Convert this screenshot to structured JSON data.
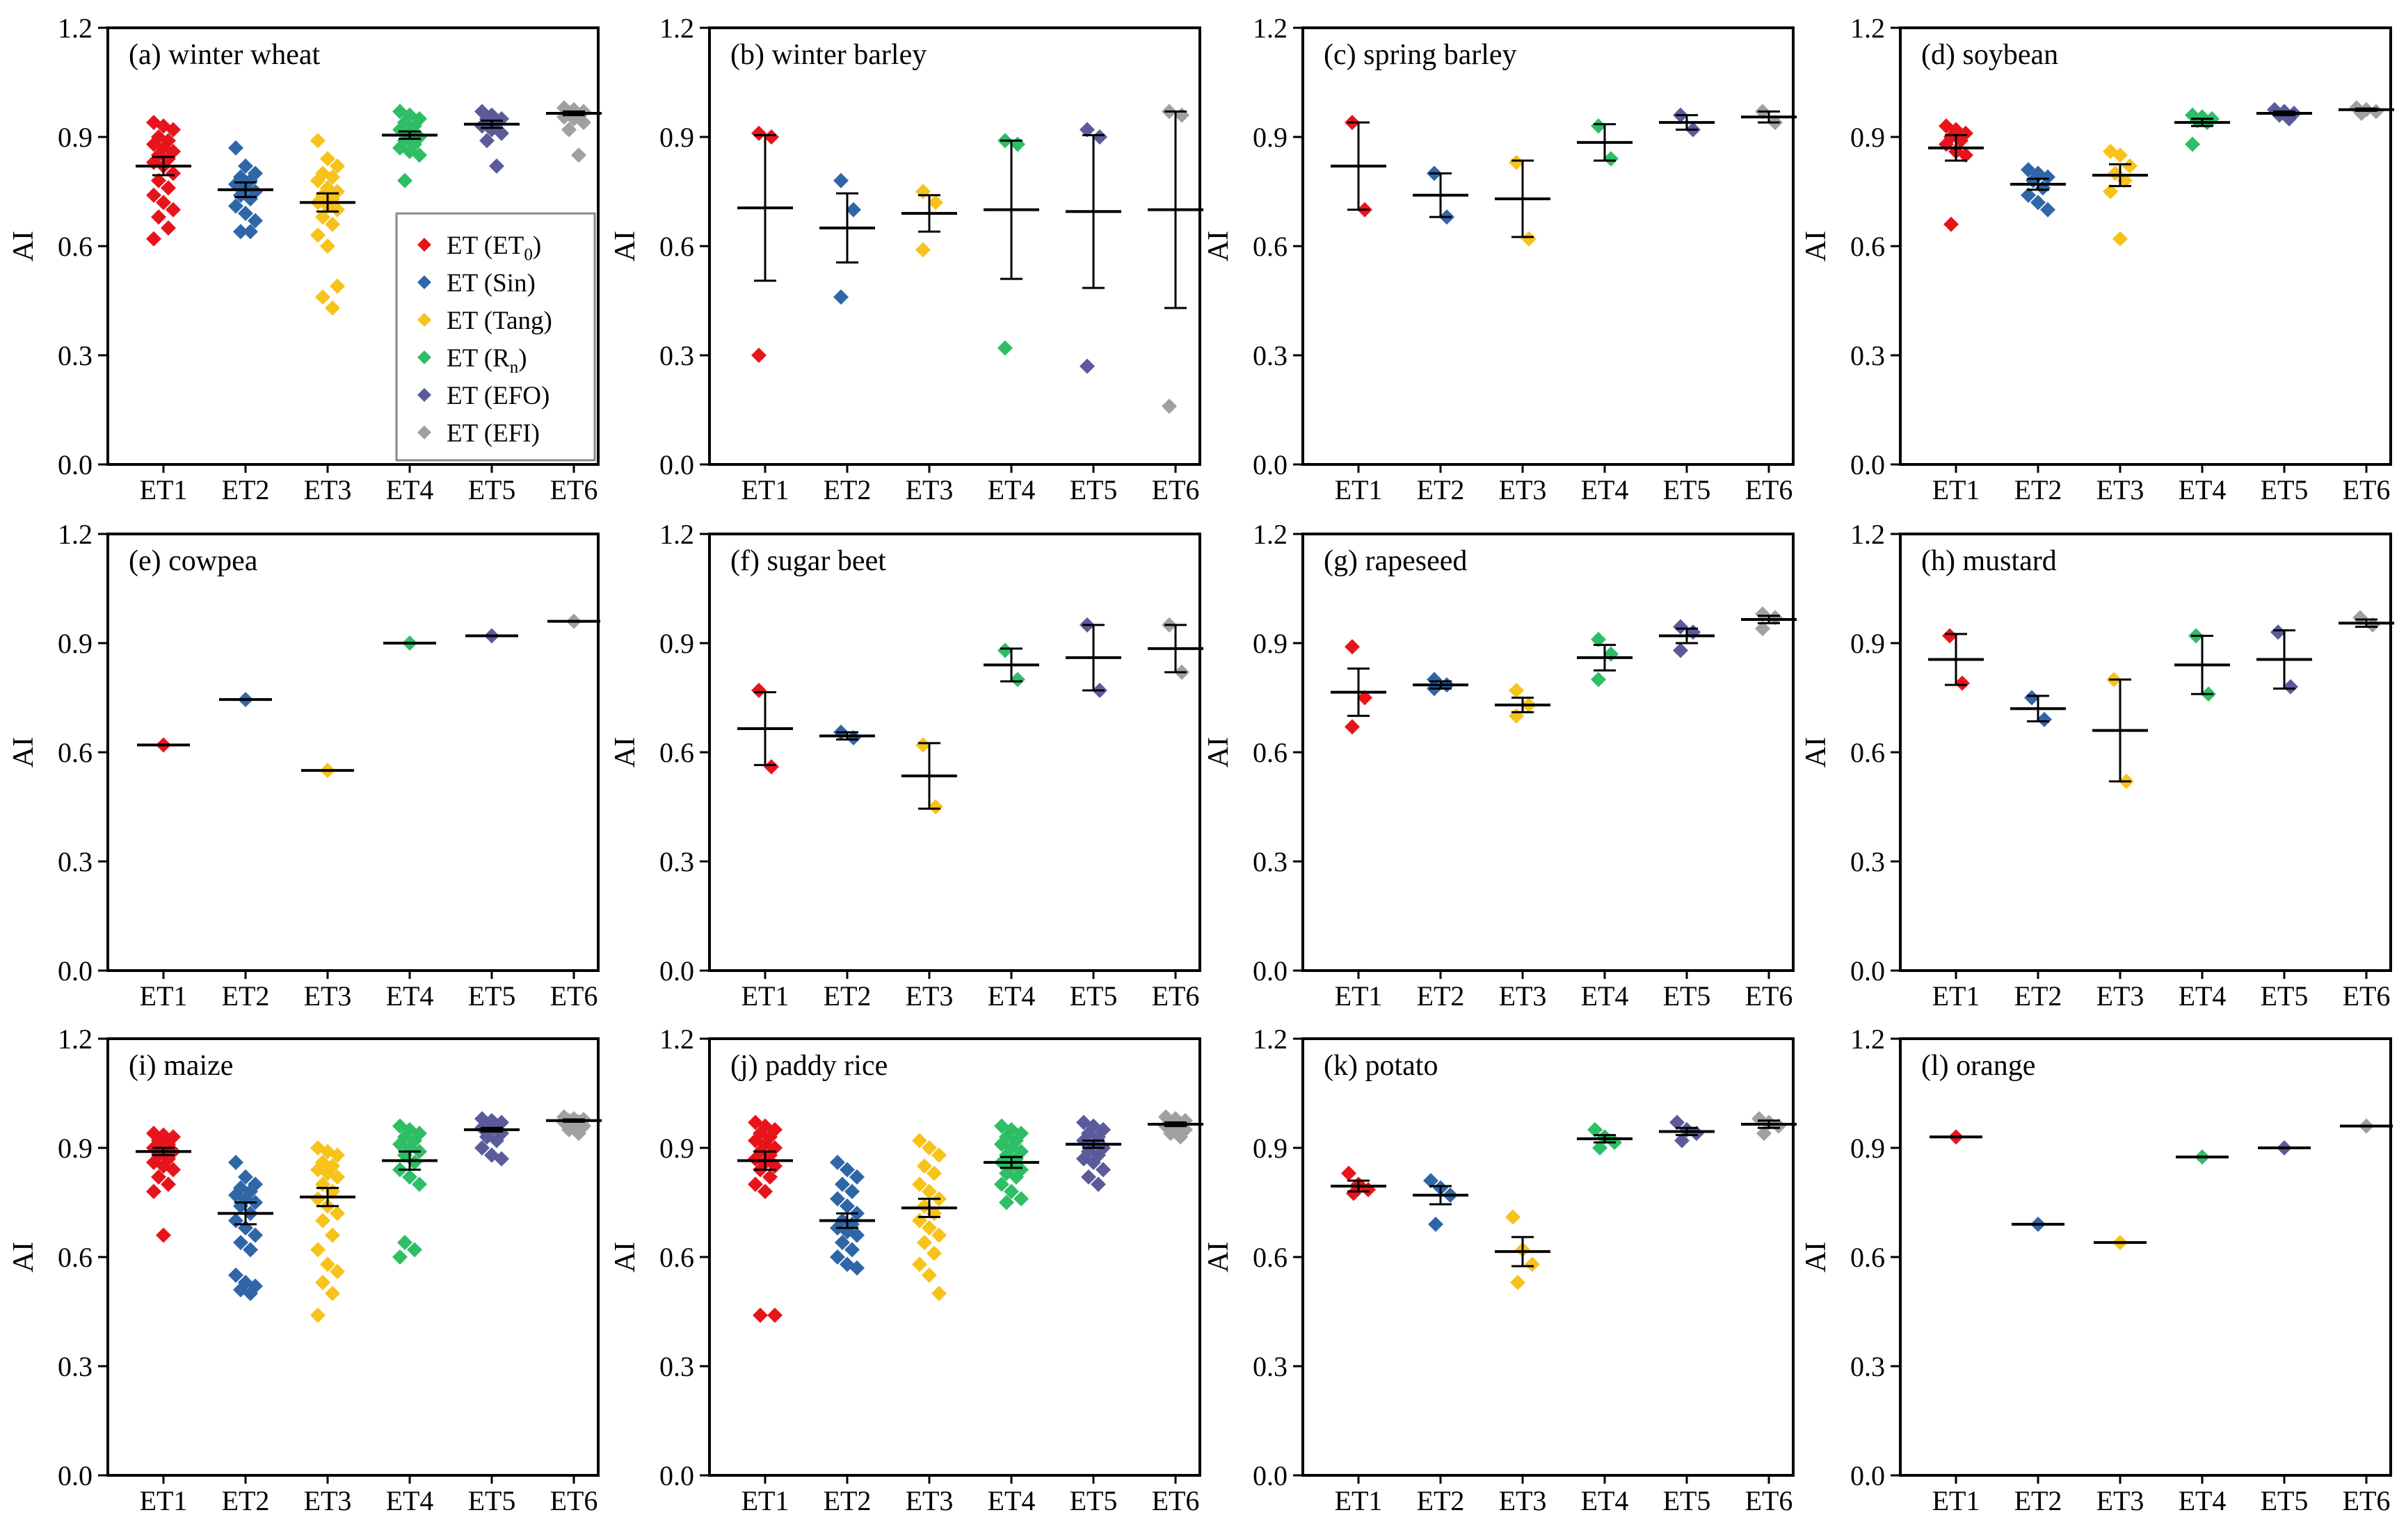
{
  "colors": {
    "ET1": "#e8141b",
    "ET2": "#2f66a8",
    "ET3": "#f7c21a",
    "ET4": "#2dbe66",
    "ET5": "#5b5b9b",
    "ET6": "#a0a0a0",
    "axis": "#000000",
    "errorbar": "#000000"
  },
  "chart_data": {
    "type": "scatter",
    "categories": [
      "ET1",
      "ET2",
      "ET3",
      "ET4",
      "ET5",
      "ET6"
    ],
    "ylim": [
      0,
      1.2
    ],
    "yticks": [
      "0.0",
      "0.3",
      "0.6",
      "0.9",
      "1.2"
    ],
    "ylabel": "AI",
    "legend": {
      "placement": "panel (a), right",
      "entries": [
        {
          "base": "ET (ET",
          "sub": "0",
          "tail": ")"
        },
        {
          "base": "ET (Sin)",
          "sub": "",
          "tail": ""
        },
        {
          "base": "ET (Tang)",
          "sub": "",
          "tail": ""
        },
        {
          "base": "ET (R",
          "sub": "n",
          "tail": ")"
        },
        {
          "base": "ET (EFO)",
          "sub": "",
          "tail": ""
        },
        {
          "base": "ET (EFI)",
          "sub": "",
          "tail": ""
        }
      ]
    },
    "panels": [
      {
        "title": "(a) winter wheat",
        "groups": [
          {
            "mean": 0.82,
            "err": 0.025,
            "points": [
              0.94,
              0.93,
              0.92,
              0.9,
              0.89,
              0.88,
              0.87,
              0.86,
              0.85,
              0.84,
              0.83,
              0.82,
              0.8,
              0.78,
              0.76,
              0.74,
              0.72,
              0.7,
              0.68,
              0.65,
              0.62
            ]
          },
          {
            "mean": 0.755,
            "err": 0.02,
            "points": [
              0.87,
              0.82,
              0.8,
              0.79,
              0.78,
              0.77,
              0.76,
              0.75,
              0.74,
              0.73,
              0.71,
              0.69,
              0.67,
              0.64,
              0.64
            ]
          },
          {
            "mean": 0.72,
            "err": 0.025,
            "points": [
              0.89,
              0.84,
              0.82,
              0.8,
              0.79,
              0.78,
              0.76,
              0.75,
              0.74,
              0.73,
              0.72,
              0.71,
              0.7,
              0.68,
              0.66,
              0.63,
              0.6,
              0.49,
              0.46,
              0.43
            ]
          },
          {
            "mean": 0.905,
            "err": 0.01,
            "points": [
              0.97,
              0.96,
              0.95,
              0.94,
              0.93,
              0.92,
              0.91,
              0.9,
              0.89,
              0.88,
              0.87,
              0.86,
              0.85,
              0.78
            ]
          },
          {
            "mean": 0.935,
            "err": 0.01,
            "points": [
              0.97,
              0.96,
              0.95,
              0.95,
              0.94,
              0.93,
              0.92,
              0.91,
              0.89,
              0.82
            ]
          },
          {
            "mean": 0.965,
            "err": 0.005,
            "points": [
              0.98,
              0.975,
              0.97,
              0.965,
              0.96,
              0.955,
              0.95,
              0.94,
              0.92,
              0.85
            ]
          }
        ]
      },
      {
        "title": "(b) winter barley",
        "groups": [
          {
            "mean": 0.705,
            "err": 0.2,
            "points": [
              0.91,
              0.9,
              0.3
            ]
          },
          {
            "mean": 0.65,
            "err": 0.095,
            "points": [
              0.78,
              0.7,
              0.46
            ]
          },
          {
            "mean": 0.69,
            "err": 0.05,
            "points": [
              0.75,
              0.72,
              0.59
            ]
          },
          {
            "mean": 0.7,
            "err": 0.19,
            "points": [
              0.89,
              0.88,
              0.32
            ]
          },
          {
            "mean": 0.695,
            "err": 0.21,
            "points": [
              0.92,
              0.9,
              0.27
            ]
          },
          {
            "mean": 0.7,
            "err": 0.27,
            "points": [
              0.97,
              0.96,
              0.16
            ]
          }
        ]
      },
      {
        "title": "(c) spring barley",
        "groups": [
          {
            "mean": 0.82,
            "err": 0.12,
            "points": [
              0.94,
              0.7
            ]
          },
          {
            "mean": 0.74,
            "err": 0.06,
            "points": [
              0.8,
              0.68
            ]
          },
          {
            "mean": 0.73,
            "err": 0.105,
            "points": [
              0.83,
              0.62
            ]
          },
          {
            "mean": 0.885,
            "err": 0.05,
            "points": [
              0.93,
              0.84
            ]
          },
          {
            "mean": 0.94,
            "err": 0.02,
            "points": [
              0.96,
              0.92
            ]
          },
          {
            "mean": 0.955,
            "err": 0.015,
            "points": [
              0.97,
              0.94
            ]
          }
        ]
      },
      {
        "title": "(d) soybean",
        "groups": [
          {
            "mean": 0.87,
            "err": 0.035,
            "points": [
              0.93,
              0.92,
              0.91,
              0.9,
              0.89,
              0.88,
              0.86,
              0.85,
              0.66
            ]
          },
          {
            "mean": 0.77,
            "err": 0.015,
            "points": [
              0.81,
              0.8,
              0.79,
              0.78,
              0.76,
              0.74,
              0.72,
              0.7
            ]
          },
          {
            "mean": 0.795,
            "err": 0.03,
            "points": [
              0.86,
              0.85,
              0.82,
              0.8,
              0.78,
              0.75,
              0.62
            ]
          },
          {
            "mean": 0.94,
            "err": 0.01,
            "points": [
              0.96,
              0.955,
              0.95,
              0.945,
              0.94,
              0.88
            ]
          },
          {
            "mean": 0.965,
            "err": 0.005,
            "points": [
              0.975,
              0.97,
              0.965,
              0.96,
              0.95
            ]
          },
          {
            "mean": 0.975,
            "err": 0.003,
            "points": [
              0.98,
              0.975,
              0.97,
              0.965
            ]
          }
        ]
      },
      {
        "title": "(e) cowpea",
        "groups": [
          {
            "mean": 0.62,
            "err": 0,
            "points": [
              0.62
            ]
          },
          {
            "mean": 0.745,
            "err": 0,
            "points": [
              0.745
            ]
          },
          {
            "mean": 0.55,
            "err": 0,
            "points": [
              0.55
            ]
          },
          {
            "mean": 0.9,
            "err": 0,
            "points": [
              0.9
            ]
          },
          {
            "mean": 0.92,
            "err": 0,
            "points": [
              0.92
            ]
          },
          {
            "mean": 0.96,
            "err": 0,
            "points": [
              0.96
            ]
          }
        ]
      },
      {
        "title": "(f) sugar beet",
        "groups": [
          {
            "mean": 0.665,
            "err": 0.1,
            "points": [
              0.77,
              0.56
            ]
          },
          {
            "mean": 0.645,
            "err": 0.01,
            "points": [
              0.655,
              0.64
            ]
          },
          {
            "mean": 0.535,
            "err": 0.09,
            "points": [
              0.62,
              0.45
            ]
          },
          {
            "mean": 0.84,
            "err": 0.045,
            "points": [
              0.88,
              0.8
            ]
          },
          {
            "mean": 0.86,
            "err": 0.09,
            "points": [
              0.95,
              0.77
            ]
          },
          {
            "mean": 0.885,
            "err": 0.065,
            "points": [
              0.95,
              0.82
            ]
          }
        ]
      },
      {
        "title": "(g) rapeseed",
        "groups": [
          {
            "mean": 0.765,
            "err": 0.065,
            "points": [
              0.89,
              0.75,
              0.67
            ]
          },
          {
            "mean": 0.785,
            "err": 0.01,
            "points": [
              0.8,
              0.785,
              0.775
            ]
          },
          {
            "mean": 0.73,
            "err": 0.02,
            "points": [
              0.77,
              0.73,
              0.7
            ]
          },
          {
            "mean": 0.86,
            "err": 0.035,
            "points": [
              0.91,
              0.87,
              0.8
            ]
          },
          {
            "mean": 0.92,
            "err": 0.02,
            "points": [
              0.945,
              0.93,
              0.88
            ]
          },
          {
            "mean": 0.965,
            "err": 0.01,
            "points": [
              0.98,
              0.97,
              0.94
            ]
          }
        ]
      },
      {
        "title": "(h) mustard",
        "groups": [
          {
            "mean": 0.855,
            "err": 0.07,
            "points": [
              0.92,
              0.79
            ]
          },
          {
            "mean": 0.72,
            "err": 0.035,
            "points": [
              0.75,
              0.69
            ]
          },
          {
            "mean": 0.66,
            "err": 0.14,
            "points": [
              0.8,
              0.52
            ]
          },
          {
            "mean": 0.84,
            "err": 0.08,
            "points": [
              0.92,
              0.76
            ]
          },
          {
            "mean": 0.855,
            "err": 0.08,
            "points": [
              0.93,
              0.78
            ]
          },
          {
            "mean": 0.955,
            "err": 0.01,
            "points": [
              0.97,
              0.95
            ]
          }
        ]
      },
      {
        "title": "(i) maize",
        "groups": [
          {
            "mean": 0.89,
            "err": 0.01,
            "points": [
              0.94,
              0.935,
              0.93,
              0.92,
              0.91,
              0.9,
              0.895,
              0.89,
              0.88,
              0.87,
              0.86,
              0.85,
              0.84,
              0.82,
              0.8,
              0.78,
              0.66
            ]
          },
          {
            "mean": 0.72,
            "err": 0.03,
            "points": [
              0.86,
              0.82,
              0.8,
              0.79,
              0.78,
              0.77,
              0.76,
              0.75,
              0.74,
              0.72,
              0.7,
              0.68,
              0.66,
              0.64,
              0.62,
              0.55,
              0.53,
              0.52,
              0.51,
              0.5
            ]
          },
          {
            "mean": 0.765,
            "err": 0.025,
            "points": [
              0.9,
              0.89,
              0.88,
              0.86,
              0.85,
              0.84,
              0.83,
              0.82,
              0.8,
              0.78,
              0.76,
              0.74,
              0.72,
              0.7,
              0.66,
              0.62,
              0.58,
              0.56,
              0.53,
              0.5,
              0.44
            ]
          },
          {
            "mean": 0.865,
            "err": 0.025,
            "points": [
              0.96,
              0.95,
              0.94,
              0.93,
              0.92,
              0.91,
              0.9,
              0.89,
              0.88,
              0.86,
              0.84,
              0.82,
              0.8,
              0.64,
              0.62,
              0.6
            ]
          },
          {
            "mean": 0.95,
            "err": 0.005,
            "points": [
              0.98,
              0.975,
              0.97,
              0.965,
              0.96,
              0.955,
              0.95,
              0.94,
              0.93,
              0.92,
              0.9,
              0.88,
              0.87
            ]
          },
          {
            "mean": 0.975,
            "err": 0.003,
            "points": [
              0.985,
              0.98,
              0.978,
              0.975,
              0.972,
              0.97,
              0.965,
              0.96,
              0.95,
              0.94
            ]
          }
        ]
      },
      {
        "title": "(j) paddy rice",
        "groups": [
          {
            "mean": 0.865,
            "err": 0.025,
            "points": [
              0.97,
              0.96,
              0.95,
              0.94,
              0.93,
              0.92,
              0.91,
              0.9,
              0.89,
              0.88,
              0.87,
              0.86,
              0.85,
              0.84,
              0.82,
              0.8,
              0.78,
              0.44,
              0.44
            ]
          },
          {
            "mean": 0.7,
            "err": 0.02,
            "points": [
              0.86,
              0.84,
              0.82,
              0.8,
              0.78,
              0.76,
              0.74,
              0.72,
              0.7,
              0.69,
              0.68,
              0.67,
              0.66,
              0.64,
              0.62,
              0.6,
              0.58,
              0.57
            ]
          },
          {
            "mean": 0.735,
            "err": 0.025,
            "points": [
              0.92,
              0.9,
              0.88,
              0.85,
              0.83,
              0.8,
              0.78,
              0.76,
              0.74,
              0.72,
              0.7,
              0.68,
              0.66,
              0.64,
              0.61,
              0.58,
              0.55,
              0.5
            ]
          },
          {
            "mean": 0.86,
            "err": 0.015,
            "points": [
              0.96,
              0.95,
              0.94,
              0.93,
              0.92,
              0.91,
              0.9,
              0.89,
              0.88,
              0.87,
              0.86,
              0.85,
              0.84,
              0.83,
              0.82,
              0.8,
              0.78,
              0.76,
              0.75
            ]
          },
          {
            "mean": 0.91,
            "err": 0.01,
            "points": [
              0.97,
              0.96,
              0.95,
              0.94,
              0.93,
              0.92,
              0.91,
              0.9,
              0.89,
              0.88,
              0.87,
              0.86,
              0.84,
              0.82,
              0.8
            ]
          },
          {
            "mean": 0.965,
            "err": 0.005,
            "points": [
              0.985,
              0.98,
              0.975,
              0.97,
              0.965,
              0.96,
              0.955,
              0.95,
              0.94,
              0.93
            ]
          }
        ]
      },
      {
        "title": "(k) potato",
        "groups": [
          {
            "mean": 0.795,
            "err": 0.015,
            "points": [
              0.83,
              0.8,
              0.785,
              0.775
            ]
          },
          {
            "mean": 0.77,
            "err": 0.025,
            "points": [
              0.81,
              0.79,
              0.77,
              0.69
            ]
          },
          {
            "mean": 0.615,
            "err": 0.04,
            "points": [
              0.71,
              0.62,
              0.58,
              0.53
            ]
          },
          {
            "mean": 0.925,
            "err": 0.01,
            "points": [
              0.95,
              0.93,
              0.915,
              0.9
            ]
          },
          {
            "mean": 0.945,
            "err": 0.01,
            "points": [
              0.97,
              0.95,
              0.94,
              0.92
            ]
          },
          {
            "mean": 0.965,
            "err": 0.01,
            "points": [
              0.98,
              0.97,
              0.96,
              0.94
            ]
          }
        ]
      },
      {
        "title": "(l) orange",
        "groups": [
          {
            "mean": 0.93,
            "err": 0,
            "points": [
              0.93
            ]
          },
          {
            "mean": 0.69,
            "err": 0,
            "points": [
              0.69
            ]
          },
          {
            "mean": 0.64,
            "err": 0,
            "points": [
              0.64
            ]
          },
          {
            "mean": 0.875,
            "err": 0,
            "points": [
              0.875
            ]
          },
          {
            "mean": 0.9,
            "err": 0,
            "points": [
              0.9
            ]
          },
          {
            "mean": 0.96,
            "err": 0,
            "points": [
              0.96
            ]
          }
        ]
      }
    ]
  }
}
